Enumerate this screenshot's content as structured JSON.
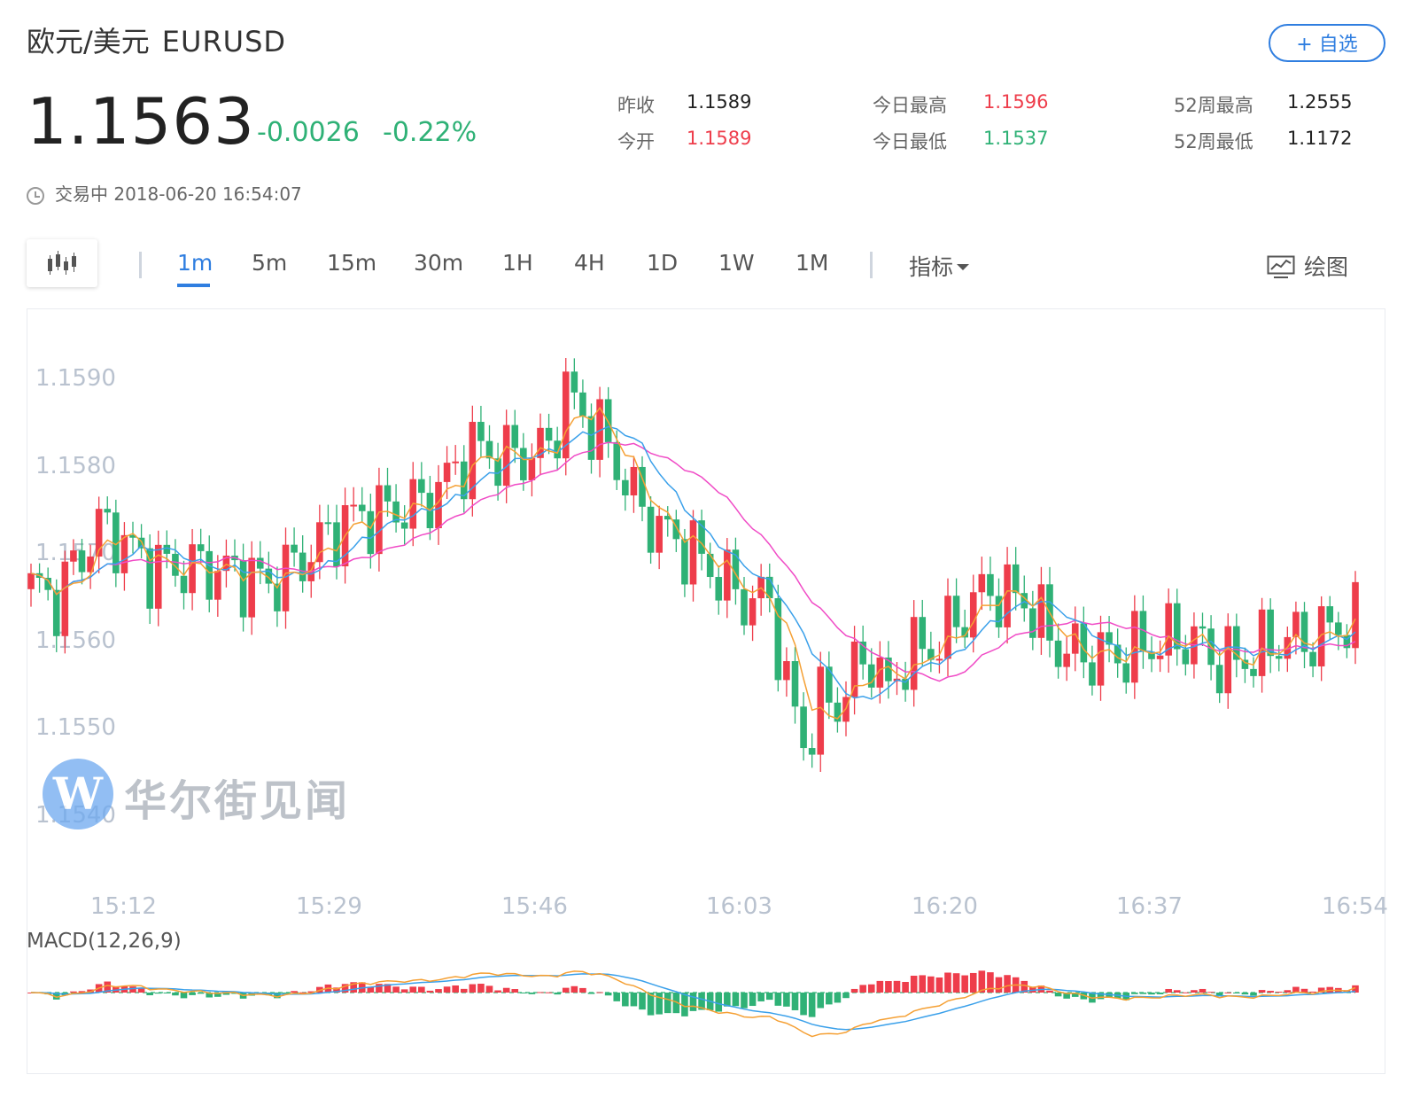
{
  "header": {
    "name": "欧元/美元",
    "symbol": "EURUSD",
    "price": "1.1563",
    "change": "-0.0026",
    "change_pct": "-0.22%",
    "watch_label": "+ 自选",
    "status": "交易中 2018-06-20 16:54:07"
  },
  "stats": [
    {
      "label": "昨收",
      "value": "1.1589",
      "color": "#222222"
    },
    {
      "label": "今开",
      "value": "1.1589",
      "color": "#ee3d4b"
    },
    {
      "label": "今日最高",
      "value": "1.1596",
      "color": "#ee3d4b"
    },
    {
      "label": "今日最低",
      "value": "1.1537",
      "color": "#2fb176"
    },
    {
      "label": "52周最高",
      "value": "1.2555",
      "color": "#222222"
    },
    {
      "label": "52周最低",
      "value": "1.1172",
      "color": "#222222"
    }
  ],
  "toolbar": {
    "tabs": [
      "1m",
      "5m",
      "15m",
      "30m",
      "1H",
      "4H",
      "1D",
      "1W",
      "1M"
    ],
    "active_tab": "1m",
    "indicator_label": "指标",
    "draw_label": "绘图"
  },
  "watermark": {
    "text": "华尔街见闻",
    "logo_letter": "W"
  },
  "colors": {
    "up": "#ee3d4b",
    "down": "#2fb176",
    "ma5": "#f5a034",
    "ma10": "#3aa0ea",
    "ma20": "#f04bc6",
    "accent": "#2f7ee0"
  },
  "chart_data": {
    "type": "candlestick",
    "y_ticks": [
      "1.1590",
      "1.1580",
      "1.1570",
      "1.1560",
      "1.1550",
      "1.1540"
    ],
    "ylim": [
      1.1535,
      1.1597
    ],
    "x_ticks": [
      "15:12",
      "15:29",
      "15:46",
      "16:03",
      "16:20",
      "16:37",
      "16:54"
    ],
    "anchors": [
      [
        0,
        1.15675
      ],
      [
        3,
        1.1566
      ],
      [
        5,
        1.157
      ],
      [
        8,
        1.1575
      ],
      [
        10,
        1.1574
      ],
      [
        14,
        1.157
      ],
      [
        20,
        1.157
      ],
      [
        25,
        1.1569
      ],
      [
        28,
        1.1568
      ],
      [
        32,
        1.1571
      ],
      [
        37,
        1.1576
      ],
      [
        42,
        1.1577
      ],
      [
        46,
        1.1578
      ],
      [
        49,
        1.1581
      ],
      [
        52,
        1.1585
      ],
      [
        55,
        1.1584
      ],
      [
        58,
        1.1584
      ],
      [
        61,
        1.1585
      ],
      [
        63,
        1.1592
      ],
      [
        65,
        1.1589
      ],
      [
        67,
        1.1587
      ],
      [
        69,
        1.1583
      ],
      [
        72,
        1.1577
      ],
      [
        75,
        1.1574
      ],
      [
        78,
        1.1572
      ],
      [
        81,
        1.1569
      ],
      [
        84,
        1.1566
      ],
      [
        87,
        1.1566
      ],
      [
        89,
        1.1555
      ],
      [
        91,
        1.1548
      ],
      [
        93,
        1.1553
      ],
      [
        95,
        1.1553
      ],
      [
        97,
        1.1557
      ],
      [
        99,
        1.1559
      ],
      [
        101,
        1.1554
      ],
      [
        103,
        1.1559
      ],
      [
        106,
        1.156
      ],
      [
        109,
        1.1563
      ],
      [
        111,
        1.1566
      ],
      [
        113,
        1.1567
      ],
      [
        117,
        1.1566
      ],
      [
        119,
        1.1563
      ],
      [
        121,
        1.156
      ],
      [
        124,
        1.1559
      ],
      [
        128,
        1.1559
      ],
      [
        131,
        1.156
      ],
      [
        134,
        1.1561
      ],
      [
        137,
        1.1561
      ],
      [
        140,
        1.1558
      ],
      [
        144,
        1.1559
      ],
      [
        147,
        1.1561
      ],
      [
        151,
        1.1561
      ],
      [
        154,
        1.1563
      ],
      [
        156,
        1.1563
      ]
    ],
    "series": [
      {
        "name": "MA5"
      },
      {
        "name": "MA10"
      },
      {
        "name": "MA20"
      }
    ],
    "macd": {
      "label": "MACD(12,26,9)"
    }
  }
}
